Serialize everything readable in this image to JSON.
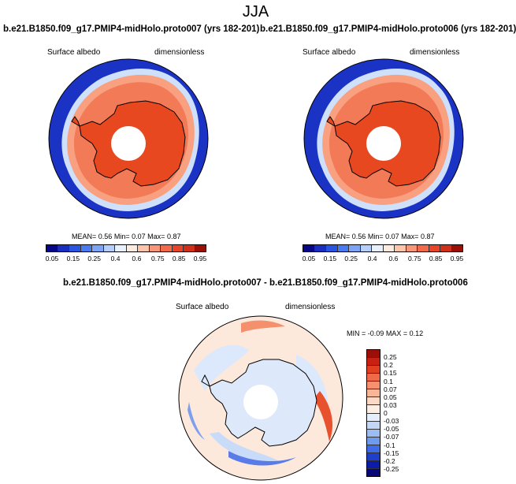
{
  "title": "JJA",
  "panel1": {
    "case": "b.e21.B1850.f09_g17.PMIP4-midHolo.proto007 (yrs 182-201)",
    "variable": "Surface albedo",
    "units": "dimensionless",
    "mean_label": "MEAN=",
    "mean": "0.56",
    "min_label": "Min=",
    "min": "0.07",
    "max_label": "Max=",
    "max": "0.87"
  },
  "panel2": {
    "case": "b.e21.B1850.f09_g17.PMIP4-midHolo.proto006 (yrs 182-201)",
    "variable": "Surface albedo",
    "units": "dimensionless",
    "mean_label": "MEAN=",
    "mean": "0.56",
    "min_label": "Min=",
    "min": "0.07",
    "max_label": "Max=",
    "max": "0.87"
  },
  "diff": {
    "case": "b.e21.B1850.f09_g17.PMIP4-midHolo.proto007 - b.e21.B1850.f09_g17.PMIP4-midHolo.proto006",
    "variable": "Surface albedo",
    "units": "dimensionless",
    "min_label": "MIN =",
    "min": "-0.09",
    "max_label": "MAX =",
    "max": "0.12"
  },
  "colorbar_abs": {
    "labels": [
      "0.05",
      "0.15",
      "0.25",
      "0.4",
      "0.6",
      "0.75",
      "0.85",
      "0.95"
    ],
    "colors": [
      "#08078a",
      "#1a2fc0",
      "#2a55e0",
      "#4a7af0",
      "#7ea5f5",
      "#b6cffa",
      "#e8f0fd",
      "#fdebe0",
      "#fcc4a8",
      "#f9967a",
      "#f26a4a",
      "#e8442a",
      "#d0301a",
      "#9a1008"
    ]
  },
  "colorbar_diff": {
    "labels": [
      "0.25",
      "0.2",
      "0.15",
      "0.1",
      "0.07",
      "0.05",
      "0.03",
      "0",
      "-0.03",
      "-0.05",
      "-0.07",
      "-0.1",
      "-0.15",
      "-0.2",
      "-0.25"
    ],
    "colors": [
      "#9a0f08",
      "#c82012",
      "#e0401f",
      "#f06a4a",
      "#f89070",
      "#fab598",
      "#fcd9c6",
      "#fdeee4",
      "#e4eefc",
      "#c3d6f8",
      "#9cbcf4",
      "#6f9bef",
      "#3f6ae8",
      "#1f3ecc",
      "#0d1ca8",
      "#08077a"
    ]
  }
}
